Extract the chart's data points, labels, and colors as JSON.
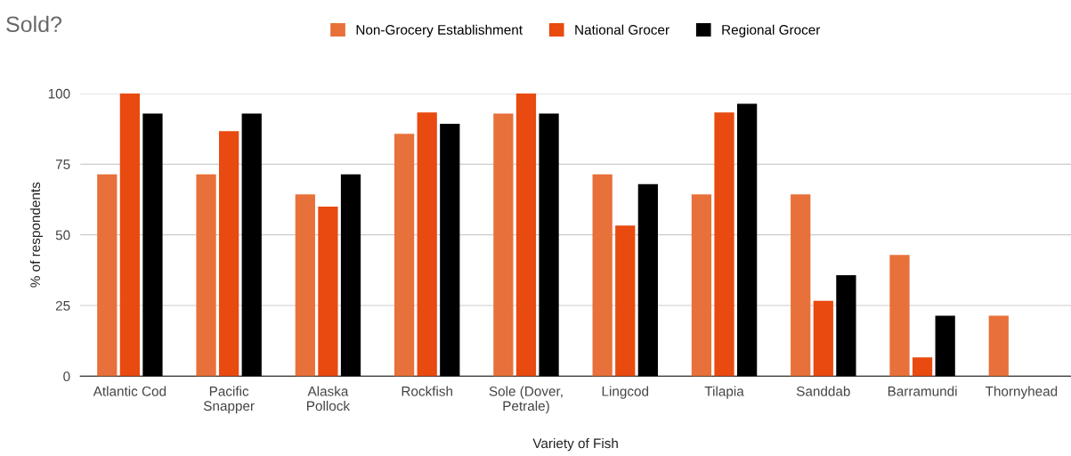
{
  "chart_data": {
    "type": "bar",
    "title": "Sold?",
    "xlabel": "Variety of Fish",
    "ylabel": "% of respondents",
    "categories": [
      "Atlantic Cod",
      "Pacific\nSnapper",
      "Alaska\nPollock",
      "Rockfish",
      "Sole (Dover,\nPetrale)",
      "Lingcod",
      "Tilapia",
      "Sanddab",
      "Barramundi",
      "Thornyhead"
    ],
    "series": [
      {
        "name": "Non-Grocery Establishment",
        "color": "#e8703a",
        "values": [
          71.4,
          71.4,
          64.3,
          85.7,
          92.9,
          71.4,
          64.3,
          64.3,
          42.9,
          21.4
        ]
      },
      {
        "name": "National Grocer",
        "color": "#e84a10",
        "values": [
          100,
          86.7,
          60,
          93.3,
          100,
          53.3,
          93.3,
          26.7,
          6.7,
          0
        ]
      },
      {
        "name": "Regional Grocer",
        "color": "#000000",
        "values": [
          92.9,
          92.9,
          71.4,
          89.3,
          92.9,
          67.9,
          96.4,
          35.7,
          21.4,
          0
        ]
      }
    ],
    "ylim": [
      0,
      100
    ],
    "yticks": [
      0,
      25,
      50,
      75,
      100
    ],
    "grid": "y",
    "legend": "top"
  }
}
